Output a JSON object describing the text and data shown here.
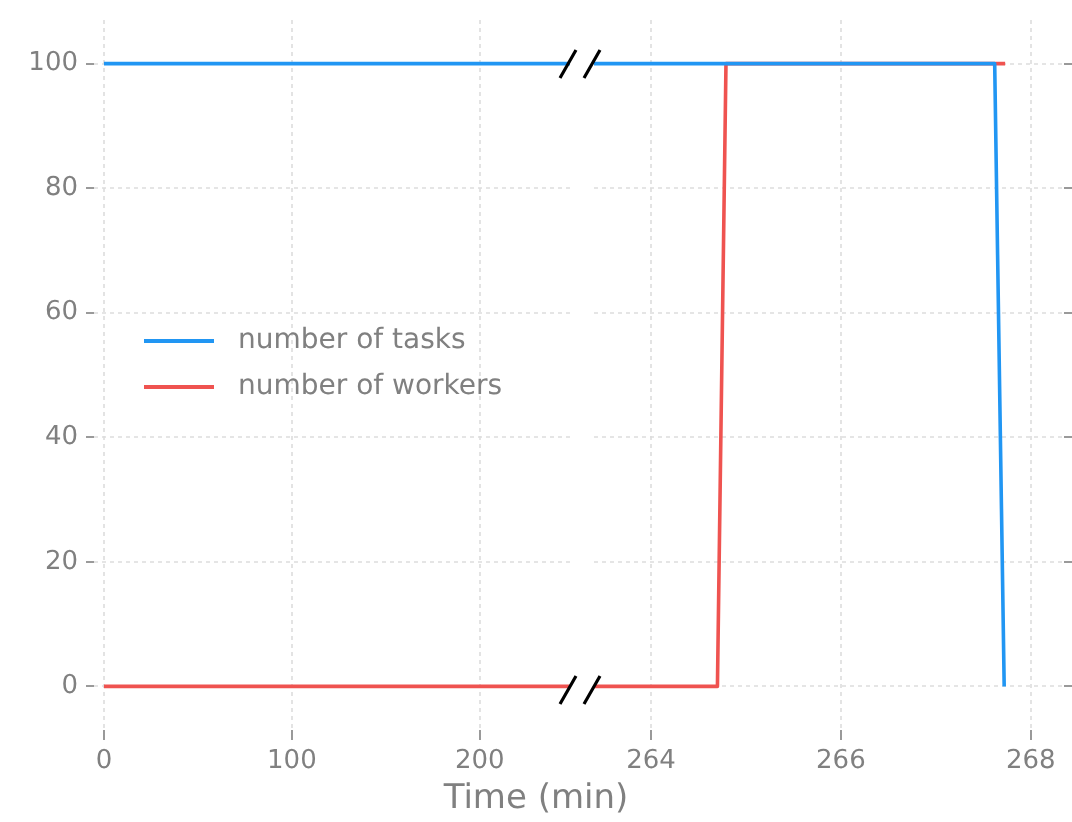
{
  "chart_data": [
    {
      "type": "line",
      "xlabel": "Time (min)",
      "x": [
        0,
        248
      ],
      "xlim": [
        -5.3,
        248
      ],
      "xticks": [
        0,
        100,
        200
      ],
      "ylim": [
        -7,
        107
      ],
      "yticks": [
        0,
        20,
        40,
        60,
        80,
        100
      ],
      "grid": true,
      "legend": "center left",
      "line_style": "solid",
      "series": [
        {
          "name": "number of tasks",
          "color": "#2196f3",
          "values": [
            100,
            100
          ]
        },
        {
          "name": "number of workers",
          "color": "#ef5350",
          "values": [
            0,
            0
          ]
        }
      ]
    },
    {
      "type": "line",
      "xlim": [
        263.4,
        268.35
      ],
      "xticks": [
        264,
        266,
        268
      ],
      "ylim": [
        -7,
        107
      ],
      "yticks": [
        0,
        20,
        40,
        60,
        80,
        100
      ],
      "grid": true,
      "legend": false,
      "tick_labels": "x",
      "line_style": "solid",
      "series": [
        {
          "color": "#2196f3",
          "x": [
            263.4,
            267.62,
            267.72
          ],
          "values": [
            100,
            100,
            0
          ]
        },
        {
          "color": "#ef5350",
          "x": [
            263.4,
            264.7,
            264.79,
            267.73
          ],
          "values": [
            0,
            0,
            100,
            100
          ]
        }
      ]
    }
  ]
}
